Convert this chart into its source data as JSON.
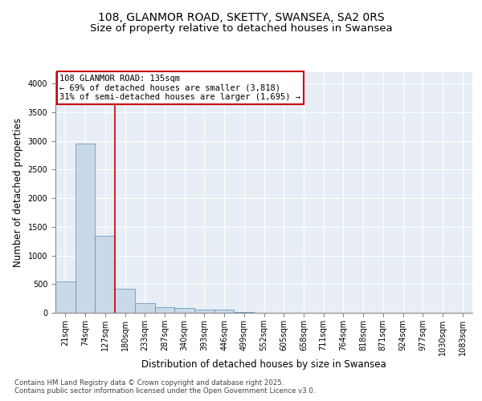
{
  "title_line1": "108, GLANMOR ROAD, SKETTY, SWANSEA, SA2 0RS",
  "title_line2": "Size of property relative to detached houses in Swansea",
  "xlabel": "Distribution of detached houses by size in Swansea",
  "ylabel": "Number of detached properties",
  "bins": [
    "21sqm",
    "74sqm",
    "127sqm",
    "180sqm",
    "233sqm",
    "287sqm",
    "340sqm",
    "393sqm",
    "446sqm",
    "499sqm",
    "552sqm",
    "605sqm",
    "658sqm",
    "711sqm",
    "764sqm",
    "818sqm",
    "871sqm",
    "924sqm",
    "977sqm",
    "1030sqm",
    "1083sqm"
  ],
  "values": [
    550,
    2950,
    1350,
    420,
    170,
    100,
    80,
    60,
    50,
    15,
    5,
    3,
    2,
    1,
    1,
    0,
    0,
    0,
    0,
    0,
    0
  ],
  "bar_color": "#c9d9e8",
  "bar_edge_color": "#5b8db8",
  "vline_color": "#cc0000",
  "annotation_box_text": "108 GLANMOR ROAD: 135sqm\n← 69% of detached houses are smaller (3,818)\n31% of semi-detached houses are larger (1,695) →",
  "annotation_box_color": "#cc0000",
  "ylim": [
    0,
    4200
  ],
  "yticks": [
    0,
    500,
    1000,
    1500,
    2000,
    2500,
    3000,
    3500,
    4000
  ],
  "background_color": "#e8eef5",
  "footer_line1": "Contains HM Land Registry data © Crown copyright and database right 2025.",
  "footer_line2": "Contains public sector information licensed under the Open Government Licence v3.0.",
  "title_fontsize": 10,
  "subtitle_fontsize": 9.5,
  "tick_fontsize": 7,
  "label_fontsize": 8.5,
  "annotation_fontsize": 7.5,
  "footer_fontsize": 6.2
}
